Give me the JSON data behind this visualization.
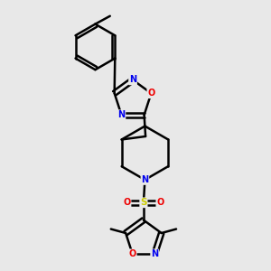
{
  "background_color": "#e8e8e8",
  "line_color": "#000000",
  "bond_width": 1.8,
  "atom_colors": {
    "N": "#0000ee",
    "O": "#ee0000",
    "S": "#cccc00",
    "C": "#000000"
  }
}
